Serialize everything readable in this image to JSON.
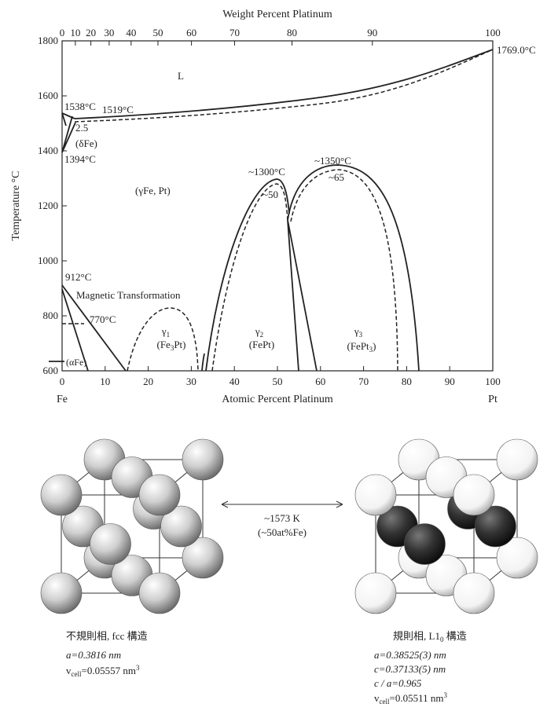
{
  "phase_diagram": {
    "top_axis_label": "Weight Percent Platinum",
    "top_ticks": [
      0,
      10,
      20,
      30,
      40,
      50,
      60,
      70,
      80,
      90,
      100
    ],
    "y_axis_label": "Temperature °C",
    "y_ticks": [
      600,
      800,
      1000,
      1200,
      1400,
      1600,
      1800
    ],
    "x_axis_label": "Atomic Percent Platinum",
    "x_ticks": [
      0,
      10,
      20,
      30,
      40,
      50,
      60,
      70,
      80,
      90,
      100
    ],
    "x_end_labels": [
      "Fe",
      "Pt"
    ],
    "labels": {
      "liquid": "L",
      "t1769": "1769.0°C",
      "t1538": "1538°C",
      "t1519": "1519°C",
      "c25": "2.5",
      "delta": [
        "(δ",
        "Fe)"
      ],
      "t1394": "1394°C",
      "gamma_fe": [
        "(γ",
        "Fe, Pt)"
      ],
      "t1300": "~1300°C",
      "c50": "~50",
      "t1350": "~1350°C",
      "c65": "~65",
      "t912": "912°C",
      "magnetic": "Magnetic Transformation",
      "t770": "770°C",
      "alpha": "(αFe)",
      "gamma1": [
        "γ",
        "1"
      ],
      "fe3pt": [
        "(Fe",
        "3",
        "Pt)"
      ],
      "gamma2": [
        "γ",
        "2"
      ],
      "fept": "(FePt)",
      "gamma3": [
        "γ",
        "3"
      ],
      "fept3": [
        "(FePt",
        "3",
        ")"
      ]
    }
  },
  "transition": {
    "line1": "~1573 K",
    "line2": "(~50at%Fe)"
  },
  "disordered": {
    "title": "不規則相, fcc 構造",
    "a": "a=0.3816 nm",
    "v": [
      "v",
      "cell",
      "=0.05557 nm",
      "3"
    ]
  },
  "ordered": {
    "title": [
      "規則相, L1",
      "0",
      " 構造"
    ],
    "a": "a=0.38525(3) nm",
    "c": "c=0.37133(5) nm",
    "ca": "c / a=0.965",
    "v": [
      "v",
      "cell",
      "=0.05511 nm",
      "3"
    ]
  }
}
